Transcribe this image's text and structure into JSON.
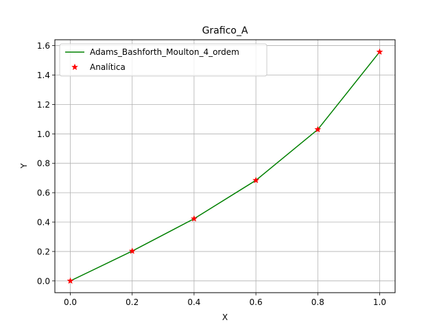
{
  "chart_data": {
    "type": "line",
    "title": "Grafico_A",
    "xlabel": "X",
    "ylabel": "Y",
    "xlim": [
      -0.05,
      1.05
    ],
    "ylim": [
      -0.08,
      1.64
    ],
    "xticks": [
      0.0,
      0.2,
      0.4,
      0.6,
      0.8,
      1.0
    ],
    "xtick_labels": [
      "0.0",
      "0.2",
      "0.4",
      "0.6",
      "0.8",
      "1.0"
    ],
    "yticks": [
      0.0,
      0.2,
      0.4,
      0.6,
      0.8,
      1.0,
      1.2,
      1.4,
      1.6
    ],
    "ytick_labels": [
      "0.0",
      "0.2",
      "0.4",
      "0.6",
      "0.8",
      "1.0",
      "1.2",
      "1.4",
      "1.6"
    ],
    "grid": true,
    "legend_position": "top-left",
    "series": [
      {
        "name": "Adams_Bashforth_Moulton_4_ordem",
        "style": "line",
        "color": "#008000",
        "x": [
          0.0,
          0.2,
          0.4,
          0.6,
          0.8,
          1.0
        ],
        "y": [
          0.0,
          0.2027,
          0.4228,
          0.6841,
          1.0296,
          1.5574
        ]
      },
      {
        "name": "Analítica",
        "style": "star-markers",
        "color": "#ff0000",
        "x": [
          0.0,
          0.2,
          0.4,
          0.6,
          0.8,
          1.0
        ],
        "y": [
          0.0,
          0.2027,
          0.4228,
          0.6841,
          1.0296,
          1.5574
        ]
      }
    ]
  }
}
